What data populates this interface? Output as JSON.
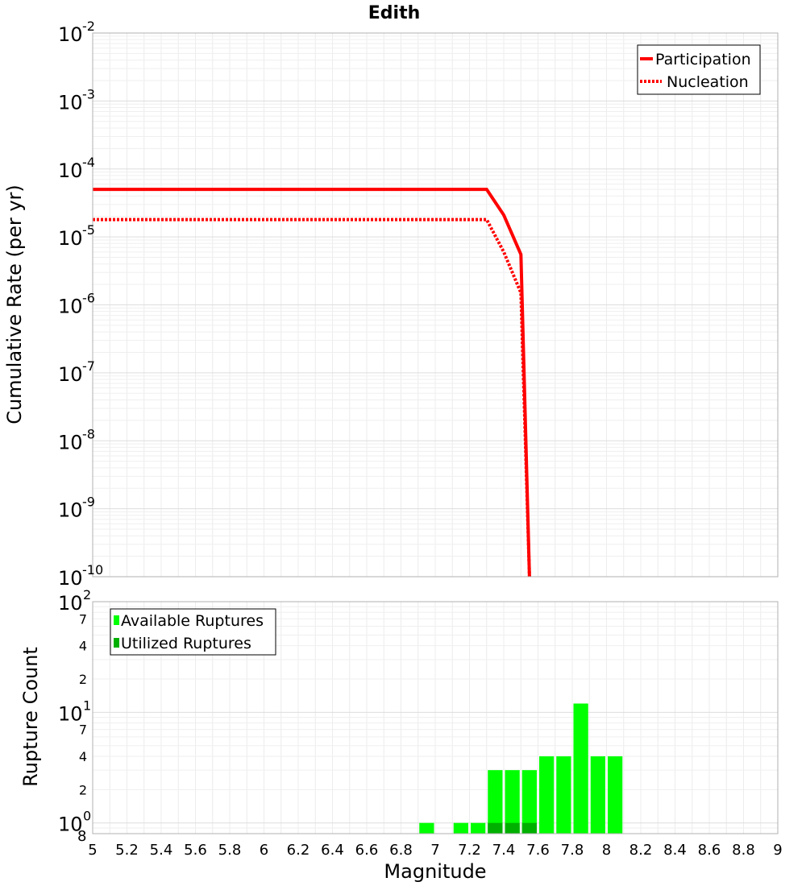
{
  "chart_data": [
    {
      "type": "line",
      "title": "Edith",
      "xlabel": "",
      "ylabel": "Cumulative Rate (per yr)",
      "xlim": [
        5,
        9
      ],
      "ylim": [
        1e-10,
        0.01
      ],
      "y_scale": "log",
      "grid": true,
      "legend_position": "top-right",
      "y_ticks": [
        {
          "mantissa": "10",
          "exp": "-10"
        },
        {
          "mantissa": "10",
          "exp": "-9"
        },
        {
          "mantissa": "10",
          "exp": "-8"
        },
        {
          "mantissa": "10",
          "exp": "-7"
        },
        {
          "mantissa": "10",
          "exp": "-6"
        },
        {
          "mantissa": "10",
          "exp": "-5"
        },
        {
          "mantissa": "10",
          "exp": "-4"
        },
        {
          "mantissa": "10",
          "exp": "-3"
        },
        {
          "mantissa": "10",
          "exp": "-2"
        }
      ],
      "series": [
        {
          "name": "Participation",
          "color": "#ff0000",
          "style": "solid",
          "x": [
            5.0,
            7.3,
            7.4,
            7.5,
            7.55
          ],
          "y": [
            5e-05,
            5e-05,
            2.1e-05,
            5.5e-06,
            1e-10
          ]
        },
        {
          "name": "Nucleation",
          "color": "#ff0000",
          "style": "dotted",
          "x": [
            5.0,
            7.3,
            7.4,
            7.5,
            7.55
          ],
          "y": [
            1.8e-05,
            1.8e-05,
            6e-06,
            1.5e-06,
            1e-10
          ]
        }
      ]
    },
    {
      "type": "bar",
      "title": "",
      "xlabel": "Magnitude",
      "ylabel": "Rupture Count",
      "xlim": [
        5,
        9
      ],
      "ylim": [
        0.8,
        100
      ],
      "y_scale": "log",
      "grid": true,
      "legend_position": "top-left",
      "x_ticks": [
        "5",
        "5.2",
        "5.4",
        "5.6",
        "5.8",
        "6",
        "6.2",
        "6.4",
        "6.6",
        "6.8",
        "7",
        "7.2",
        "7.4",
        "7.6",
        "7.8",
        "8",
        "8.2",
        "8.4",
        "8.6",
        "8.8",
        "9"
      ],
      "y_tick_labels": {
        "lower_bound": "8",
        "lower_bound_prefix": "-1",
        "decade_0": {
          "mantissa": "10",
          "exp": "0"
        },
        "decade_1": {
          "mantissa": "10",
          "exp": "1"
        },
        "decade_2": {
          "mantissa": "10",
          "exp": "2"
        },
        "minor": [
          {
            "value": 2,
            "label": "2"
          },
          {
            "value": 4,
            "label": "4"
          },
          {
            "value": 7,
            "label": "7"
          },
          {
            "value": 20,
            "label": "2"
          },
          {
            "value": 40,
            "label": "4"
          },
          {
            "value": 70,
            "label": "7"
          }
        ]
      },
      "bin_width": 0.1,
      "series": [
        {
          "name": "Available Ruptures",
          "color": "#00ff00",
          "x": [
            6.95,
            7.15,
            7.25,
            7.35,
            7.45,
            7.55,
            7.65,
            7.75,
            7.85,
            7.95,
            8.05
          ],
          "values": [
            1,
            1,
            1,
            3,
            3,
            3,
            4,
            4,
            12,
            4,
            4
          ]
        },
        {
          "name": "Utilized Ruptures",
          "color": "#00b000",
          "x": [
            7.35,
            7.45,
            7.55
          ],
          "values": [
            1,
            1,
            1
          ]
        }
      ]
    }
  ]
}
